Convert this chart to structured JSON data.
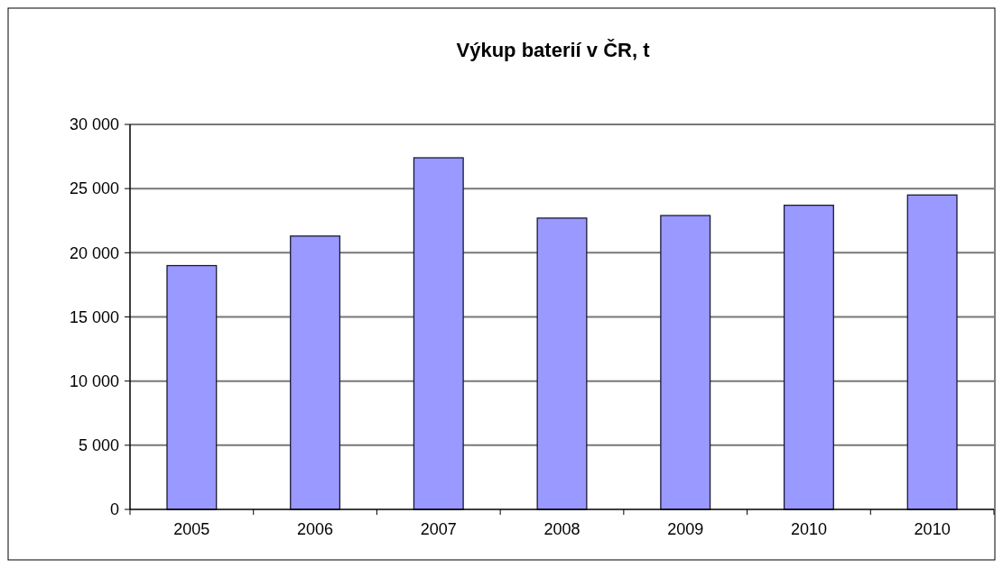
{
  "chart_data": {
    "type": "bar",
    "title": "Výkup baterií v ČR, t",
    "categories": [
      "2005",
      "2006",
      "2007",
      "2008",
      "2009",
      "2010",
      "2010"
    ],
    "values": [
      19000,
      21300,
      27400,
      22700,
      22900,
      23700,
      24500
    ],
    "color": "#9999ff",
    "ylim": [
      0,
      30000
    ],
    "yticks": [
      {
        "value": 0,
        "label": "0"
      },
      {
        "value": 5000,
        "label": "5 000"
      },
      {
        "value": 10000,
        "label": "10 000"
      },
      {
        "value": 15000,
        "label": "15 000"
      },
      {
        "value": 20000,
        "label": "20 000"
      },
      {
        "value": 25000,
        "label": "25 000"
      },
      {
        "value": 30000,
        "label": "30 000"
      }
    ],
    "grid": "y"
  }
}
